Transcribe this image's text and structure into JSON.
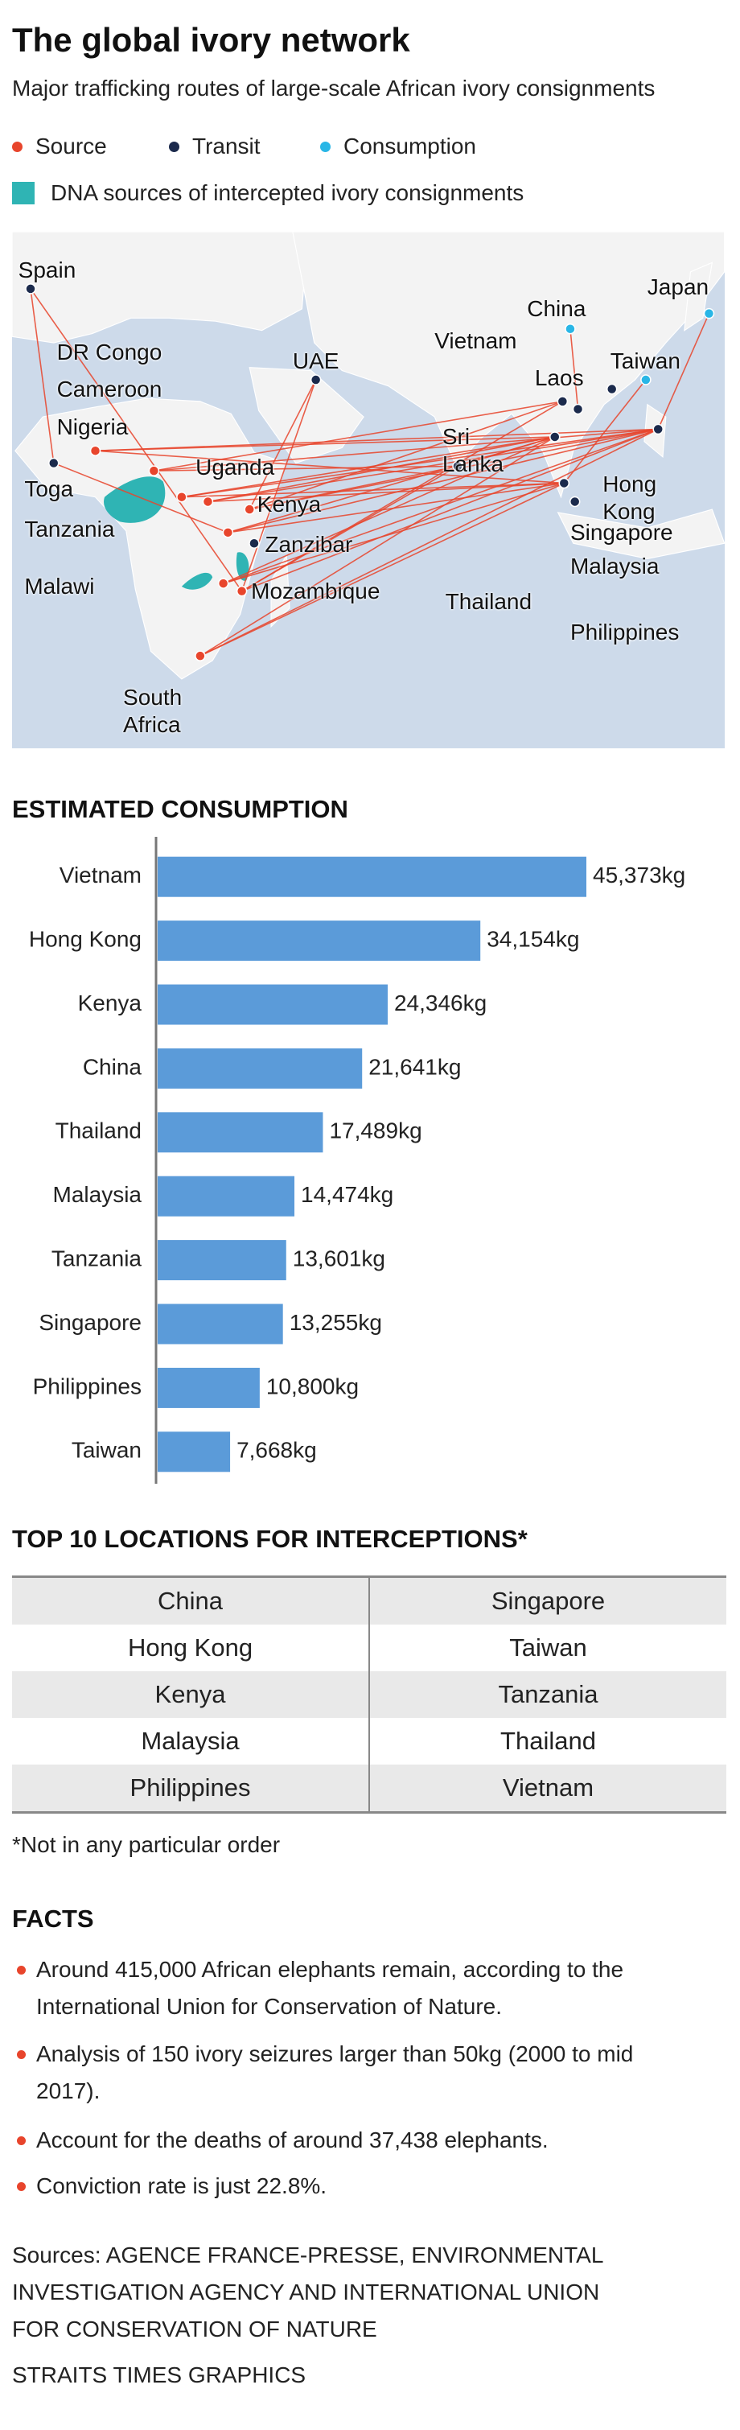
{
  "header": {
    "title": "The global ivory network",
    "subtitle": "Major trafficking routes of large-scale African ivory consignments"
  },
  "legend": {
    "items": [
      {
        "label": "Source",
        "color": "#e8452c"
      },
      {
        "label": "Transit",
        "color": "#1b2a4c"
      },
      {
        "label": "Consumption",
        "color": "#29b6e6"
      }
    ],
    "dna": {
      "label": "DNA sources of intercepted ivory consignments",
      "color": "#2fb4b4"
    }
  },
  "map": {
    "places": [
      {
        "label": "Spain",
        "color": "#1b2a4c"
      },
      {
        "label": "DR Congo",
        "color": "#e8452c"
      },
      {
        "label": "Cameroon",
        "color": "#e8452c"
      },
      {
        "label": "Nigeria",
        "color": "#e8452c"
      },
      {
        "label": "Toga",
        "color": "#1b2a4c"
      },
      {
        "label": "Uganda",
        "color": "#e8452c"
      },
      {
        "label": "Kenya",
        "color": "#e8452c"
      },
      {
        "label": "Tanzania",
        "color": "#e8452c"
      },
      {
        "label": "Zanzibar",
        "color": "#1b2a4c"
      },
      {
        "label": "Malawi",
        "color": "#e8452c"
      },
      {
        "label": "Mozambique",
        "color": "#e8452c"
      },
      {
        "label": "South Africa",
        "color": "#e8452c"
      },
      {
        "label": "UAE",
        "color": "#1b2a4c"
      },
      {
        "label": "Sri Lanka",
        "color": "#1b2a4c"
      },
      {
        "label": "Vietnam",
        "color": "#1b2a4c"
      },
      {
        "label": "China",
        "color": "#29b6e6"
      },
      {
        "label": "Laos",
        "color": "#1b2a4c"
      },
      {
        "label": "Taiwan",
        "color": "#29b6e6"
      },
      {
        "label": "Japan",
        "color": "#29b6e6"
      },
      {
        "label": "Hong Kong",
        "color": "#1b2a4c"
      },
      {
        "label": "Singapore",
        "color": "#1b2a4c"
      },
      {
        "label": "Malaysia",
        "color": "#1b2a4c"
      },
      {
        "label": "Thailand",
        "color": "#1b2a4c"
      },
      {
        "label": "Philippines",
        "color": "#1b2a4c"
      }
    ]
  },
  "chart_data": {
    "type": "bar",
    "orientation": "horizontal",
    "title": "ESTIMATED CONSUMPTION",
    "categories": [
      "Vietnam",
      "Hong Kong",
      "Kenya",
      "China",
      "Thailand",
      "Malaysia",
      "Tanzania",
      "Singapore",
      "Philippines",
      "Taiwan"
    ],
    "values": [
      45373,
      34154,
      24346,
      21641,
      17489,
      14474,
      13601,
      13255,
      10800,
      7668
    ],
    "value_labels": [
      "45,373kg",
      "34,154kg",
      "24,346kg",
      "21,641kg",
      "17,489kg",
      "14,474kg",
      "13,601kg",
      "13,255kg",
      "10,800kg",
      "7,668kg"
    ],
    "color": "#5b9bd9"
  },
  "table": {
    "title": "TOP 10 LOCATIONS FOR INTERCEPTIONS*",
    "rows": [
      [
        "China",
        "Singapore"
      ],
      [
        "Hong Kong",
        "Taiwan"
      ],
      [
        "Kenya",
        "Tanzania"
      ],
      [
        "Malaysia",
        "Thailand"
      ],
      [
        "Philippines",
        "Vietnam"
      ]
    ],
    "footnote": "*Not in any particular order"
  },
  "facts": {
    "title": "FACTS",
    "items": [
      "Around 415,000 African elephants remain, according to the International Union for Conservation of Nature.",
      "Analysis of 150 ivory seizures larger than 50kg (2000 to mid 2017).",
      "Account for the deaths of around 37,438 elephants.",
      "Conviction rate is just 22.8%."
    ]
  },
  "footer": {
    "sources": "Sources: AGENCE FRANCE-PRESSE, ENVIRONMENTAL INVESTIGATION AGENCY AND INTERNATIONAL UNION FOR CONSERVATION OF NATURE",
    "credit": "STRAITS TIMES GRAPHICS"
  }
}
